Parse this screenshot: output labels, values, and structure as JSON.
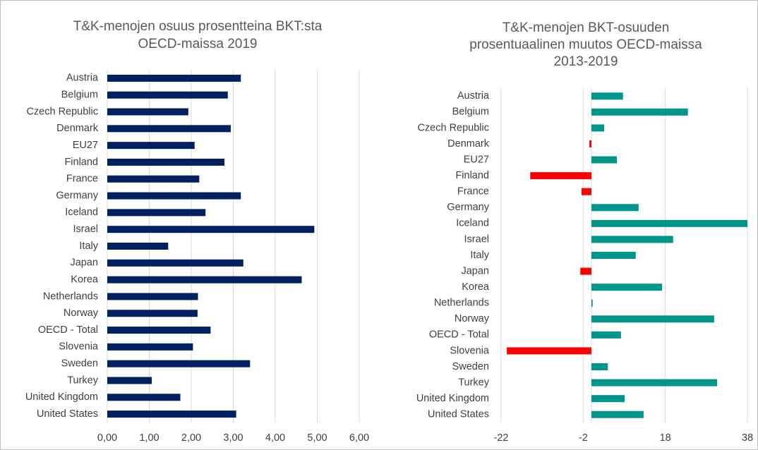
{
  "chart_data": [
    {
      "type": "bar",
      "orientation": "horizontal",
      "title": [
        "T&K-menojen osuus prosentteina BKT:sta",
        "OECD-maissa 2019"
      ],
      "categories": [
        "Austria",
        "Belgium",
        "Czech Republic",
        "Denmark",
        "EU27",
        "Finland",
        "France",
        "Germany",
        "Iceland",
        "Israel",
        "Italy",
        "Japan",
        "Korea",
        "Netherlands",
        "Norway",
        "OECD - Total",
        "Slovenia",
        "Sweden",
        "Turkey",
        "United Kingdom",
        "United States"
      ],
      "values": [
        3.18,
        2.87,
        1.93,
        2.94,
        2.08,
        2.79,
        2.19,
        3.18,
        2.34,
        4.93,
        1.45,
        3.24,
        4.63,
        2.16,
        2.15,
        2.46,
        2.04,
        3.4,
        1.06,
        1.74,
        3.07
      ],
      "color": "#002060",
      "xlim": [
        0,
        6
      ],
      "xticks": [
        {
          "value": 0,
          "label": "0,00"
        },
        {
          "value": 1,
          "label": "1,00"
        },
        {
          "value": 2,
          "label": "2,00"
        },
        {
          "value": 3,
          "label": "3,00"
        },
        {
          "value": 4,
          "label": "4,00"
        },
        {
          "value": 5,
          "label": "5,00"
        },
        {
          "value": 6,
          "label": "6,00"
        }
      ],
      "grid": true
    },
    {
      "type": "bar",
      "orientation": "horizontal",
      "title": [
        "T&K-menojen BKT-osuuden",
        "prosentuaalinen muutos OECD-maissa",
        "2013-2019"
      ],
      "categories": [
        "Austria",
        "Belgium",
        "Czech Republic",
        "Denmark",
        "EU27",
        "Finland",
        "France",
        "Germany",
        "Iceland",
        "Israel",
        "Italy",
        "Japan",
        "Korea",
        "Netherlands",
        "Norway",
        "OECD - Total",
        "Slovenia",
        "Sweden",
        "Turkey",
        "United Kingdom",
        "United States"
      ],
      "values": [
        7.7,
        23.5,
        3.1,
        -0.5,
        6.2,
        -14.9,
        -2.4,
        11.5,
        38,
        19.9,
        10.8,
        -2.7,
        17.2,
        0.3,
        29.9,
        7.2,
        -20.6,
        4.0,
        30.6,
        8.1,
        12.7
      ],
      "color": "#00968a",
      "negative_color": "#ff0000",
      "xlim": [
        -22,
        38
      ],
      "xticks": [
        -22,
        -2,
        18,
        38
      ],
      "grid": true
    }
  ]
}
